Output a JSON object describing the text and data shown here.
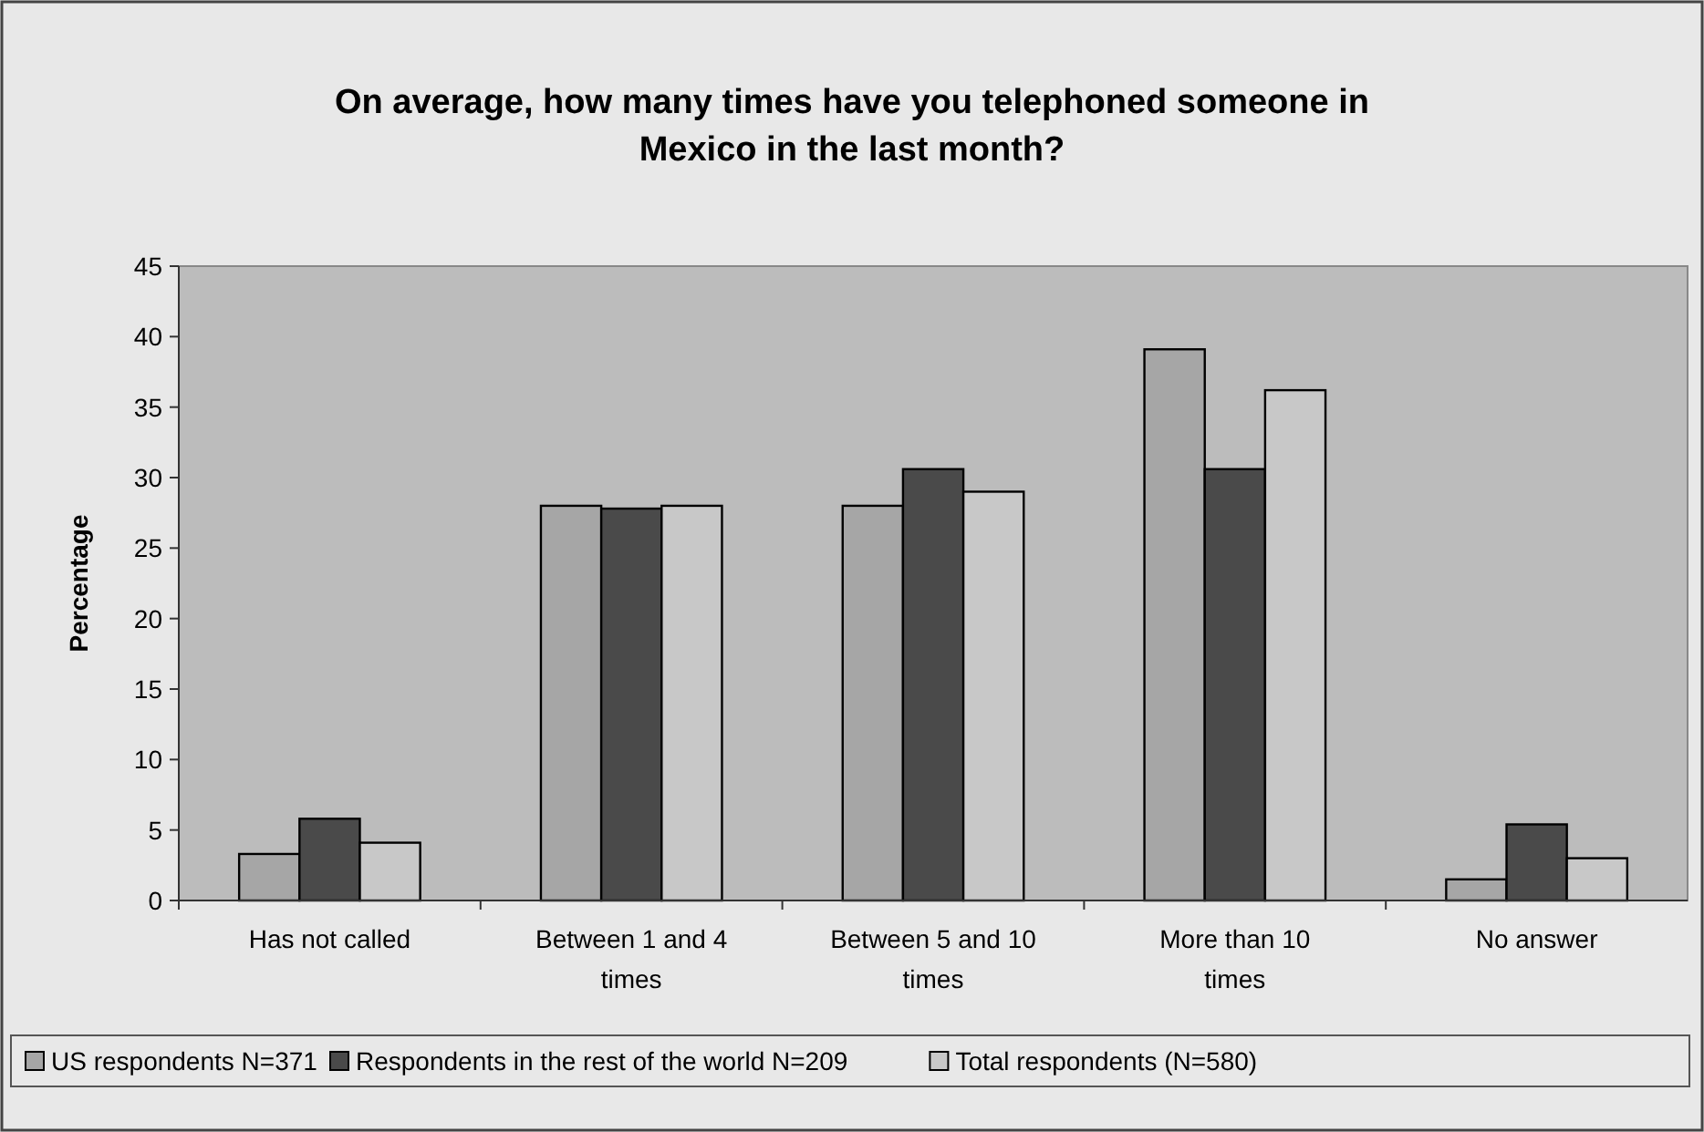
{
  "chart_data": {
    "type": "bar",
    "title": "On average, how many times have you telephoned someone in Mexico in the last month?",
    "ylabel": "Percentage",
    "categories": [
      "Has not called",
      "Between 1 and 4 times",
      "Between 5 and 10 times",
      "More than 10 times",
      "No answer"
    ],
    "series": [
      {
        "name": "US respondents N=371",
        "color": "#a6a6a6",
        "values": [
          3.3,
          28,
          28,
          39.1,
          1.5
        ]
      },
      {
        "name": "Respondents in the rest of the world N=209",
        "color": "#4a4a4a",
        "values": [
          5.8,
          27.8,
          30.6,
          30.6,
          5.4
        ]
      },
      {
        "name": "Total respondents (N=580)",
        "color": "#c8c8c8",
        "values": [
          4.1,
          28,
          29,
          36.2,
          3
        ]
      }
    ],
    "ylim": [
      0,
      45
    ],
    "yticks": [
      0,
      5,
      10,
      15,
      20,
      25,
      30,
      35,
      40,
      45
    ],
    "grid": false,
    "legend": "bottom"
  }
}
